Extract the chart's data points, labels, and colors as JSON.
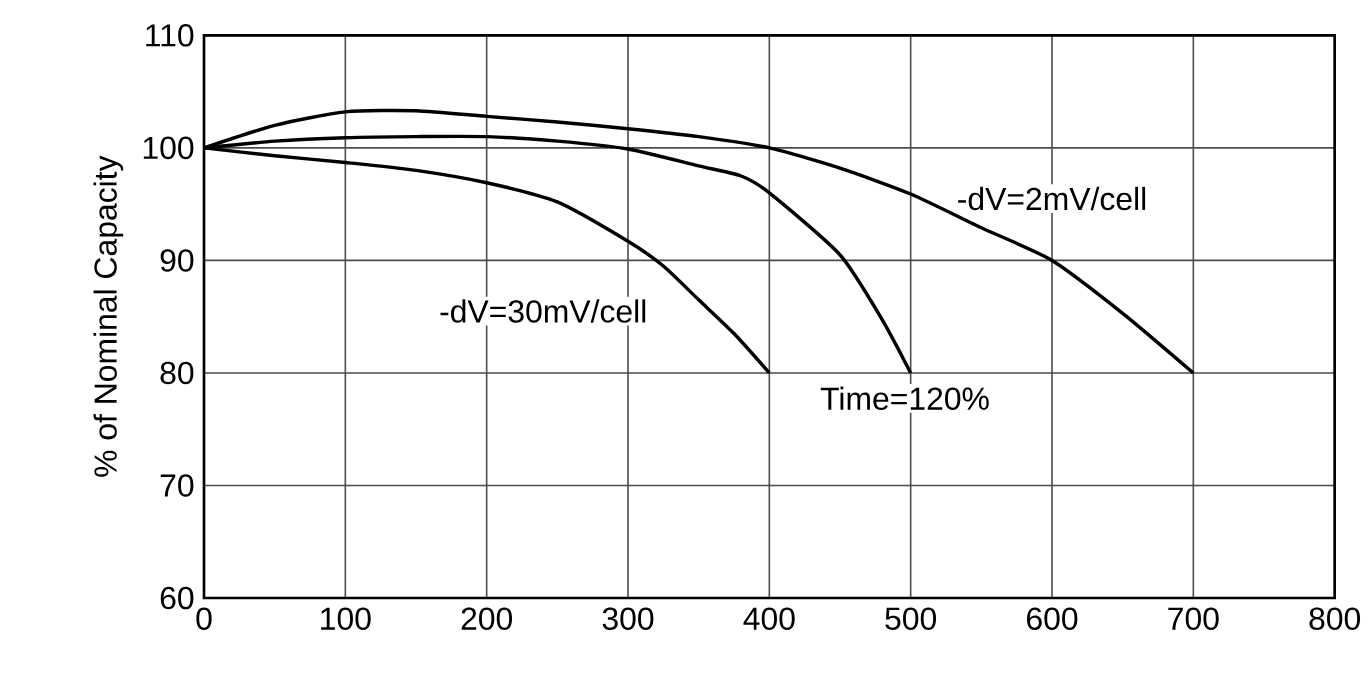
{
  "chart_data": {
    "type": "line",
    "ylabel": "% of Nominal Capacity",
    "xlim": [
      0,
      800
    ],
    "ylim": [
      60,
      110
    ],
    "xticks": [
      0,
      100,
      200,
      300,
      400,
      500,
      600,
      700,
      800
    ],
    "yticks": [
      60,
      70,
      80,
      90,
      100,
      110
    ],
    "grid": true,
    "marker": "none",
    "line_style": "solid",
    "series": [
      {
        "color": "#000000",
        "x": [
          0,
          50,
          100,
          150,
          200,
          250,
          300,
          350,
          400,
          450,
          500,
          550,
          600,
          650,
          700
        ],
        "values": [
          100,
          102,
          103.2,
          103.3,
          102.8,
          102.3,
          101.7,
          101,
          100,
          98.2,
          95.9,
          92.9,
          90,
          85.3,
          80
        ]
      },
      {
        "color": "#000000",
        "x": [
          0,
          50,
          100,
          150,
          200,
          250,
          300,
          350,
          380,
          400,
          450,
          480,
          500
        ],
        "values": [
          100,
          100.6,
          100.9,
          101,
          101,
          100.6,
          99.9,
          98.4,
          97.5,
          96,
          90.5,
          84.7,
          80
        ]
      },
      {
        "color": "#000000",
        "x": [
          0,
          50,
          100,
          150,
          200,
          250,
          300,
          325,
          350,
          375,
          400
        ],
        "values": [
          100,
          99.3,
          98.7,
          98,
          96.9,
          95.2,
          91.7,
          89.5,
          86.5,
          83.5,
          80
        ]
      }
    ],
    "annotations": [
      "-dV=30mV/cell",
      "Time=120%",
      "-dV=2mV/cell"
    ]
  }
}
